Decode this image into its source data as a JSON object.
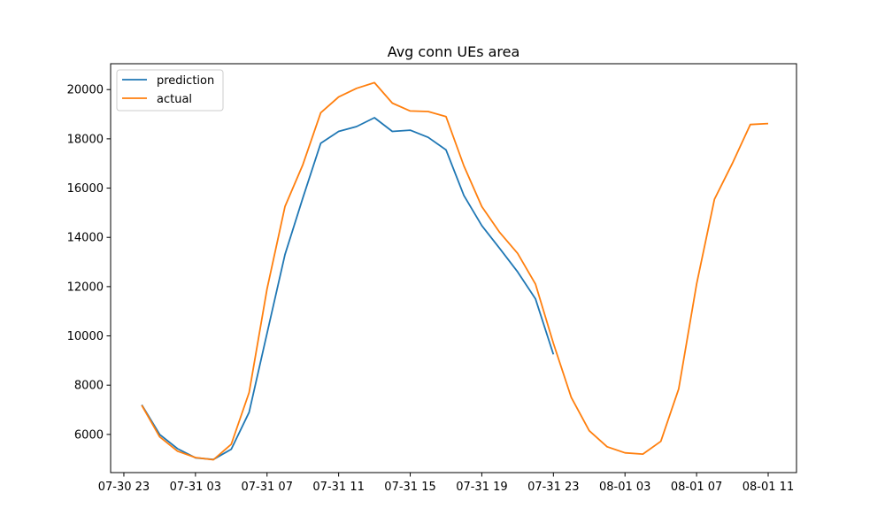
{
  "chart_data": {
    "type": "line",
    "title": "Avg conn UEs area",
    "xlabel": "",
    "ylabel": "",
    "x_tick_labels": [
      "07-30 23",
      "07-31 03",
      "07-31 07",
      "07-31 11",
      "07-31 15",
      "07-31 19",
      "07-31 23",
      "08-01 03",
      "08-01 07",
      "08-01 11"
    ],
    "y_ticks": [
      6000,
      8000,
      10000,
      12000,
      14000,
      16000,
      18000,
      20000
    ],
    "ylim": [
      4450,
      21050
    ],
    "legend": "top-left",
    "grid": false,
    "series": [
      {
        "name": "prediction",
        "color": "#1f77b4",
        "x": [
          "07-31 00:00",
          "07-31 01:00",
          "07-31 02:00",
          "07-31 03:00",
          "07-31 04:00",
          "07-31 05:00",
          "07-31 06:00",
          "07-31 07:00",
          "07-31 08:00",
          "07-31 09:00",
          "07-31 10:00",
          "07-31 11:00",
          "07-31 12:00",
          "07-31 13:00",
          "07-31 14:00",
          "07-31 15:00",
          "07-31 16:00",
          "07-31 17:00",
          "07-31 18:00",
          "07-31 19:00",
          "07-31 20:00",
          "07-31 21:00",
          "07-31 22:00",
          "07-31 23:00"
        ],
        "values": [
          7200,
          6000,
          5420,
          5050,
          4980,
          5400,
          6900,
          10100,
          13300,
          15600,
          17820,
          18300,
          18500,
          18860,
          18300,
          18350,
          18060,
          17550,
          15700,
          14480,
          13550,
          12600,
          11500,
          9250
        ]
      },
      {
        "name": "actual",
        "color": "#ff7f0e",
        "x": [
          "07-31 00:00",
          "07-31 01:00",
          "07-31 02:00",
          "07-31 03:00",
          "07-31 04:00",
          "07-31 05:00",
          "07-31 06:00",
          "07-31 07:00",
          "07-31 08:00",
          "07-31 09:00",
          "07-31 10:00",
          "07-31 11:00",
          "07-31 12:00",
          "07-31 13:00",
          "07-31 14:00",
          "07-31 15:00",
          "07-31 16:00",
          "07-31 17:00",
          "07-31 18:00",
          "07-31 19:00",
          "07-31 20:00",
          "07-31 21:00",
          "07-31 22:00",
          "07-31 23:00",
          "08-01 00:00",
          "08-01 01:00",
          "08-01 02:00",
          "08-01 03:00",
          "08-01 04:00",
          "08-01 05:00",
          "08-01 06:00",
          "08-01 07:00",
          "08-01 08:00",
          "08-01 09:00",
          "08-01 10:00",
          "08-01 11:00"
        ],
        "values": [
          7180,
          5900,
          5320,
          5060,
          4970,
          5600,
          7700,
          11900,
          15250,
          16950,
          19060,
          19700,
          20050,
          20280,
          19450,
          19130,
          19110,
          18900,
          16900,
          15250,
          14200,
          13350,
          12100,
          9700,
          7500,
          6150,
          5500,
          5250,
          5200,
          5720,
          7850,
          12100,
          15550,
          17000,
          18580,
          18620
        ]
      }
    ]
  }
}
